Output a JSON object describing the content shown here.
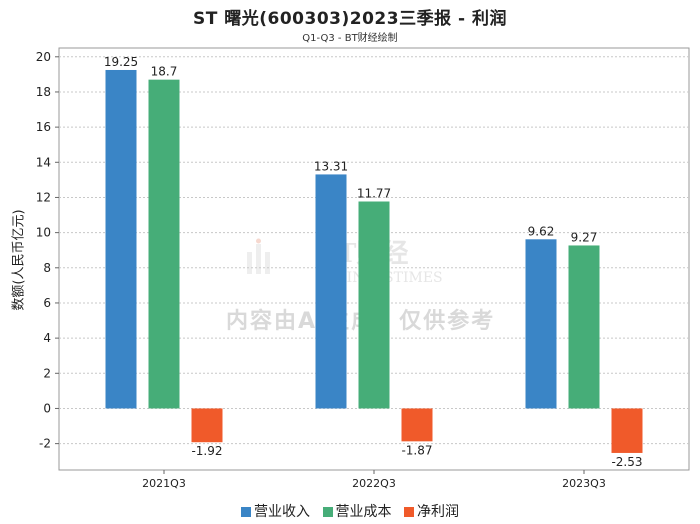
{
  "title": "ST 曙光(600303)2023三季报 - 利润",
  "subtitle": "Q1-Q3 - BT财经绘制",
  "watermark": {
    "logo_main": "BT财经",
    "logo_sub": "BUSINESSTIMES",
    "caption": "内容由AI生成，仅供参考"
  },
  "colors": {
    "营业收入": "#3a85c6",
    "营业成本": "#46ad78",
    "净利润": "#f05a2a"
  },
  "chart_data": {
    "type": "bar",
    "title": "ST 曙光(600303)2023三季报 - 利润",
    "subtitle": "Q1-Q3 - BT财经绘制",
    "xlabel": "",
    "ylabel": "数额(人民币亿元)",
    "ylim": [
      -3.5,
      20.5
    ],
    "yticks": [
      -2,
      0,
      2,
      4,
      6,
      8,
      10,
      12,
      14,
      16,
      18,
      20
    ],
    "grid": true,
    "legend": "bottom",
    "categories": [
      "2021Q3",
      "2022Q3",
      "2023Q3"
    ],
    "series": [
      {
        "name": "营业收入",
        "values": [
          19.25,
          13.31,
          9.62
        ]
      },
      {
        "name": "营业成本",
        "values": [
          18.7,
          11.77,
          9.27
        ]
      },
      {
        "name": "净利润",
        "values": [
          -1.92,
          -1.87,
          -2.53
        ]
      }
    ]
  }
}
